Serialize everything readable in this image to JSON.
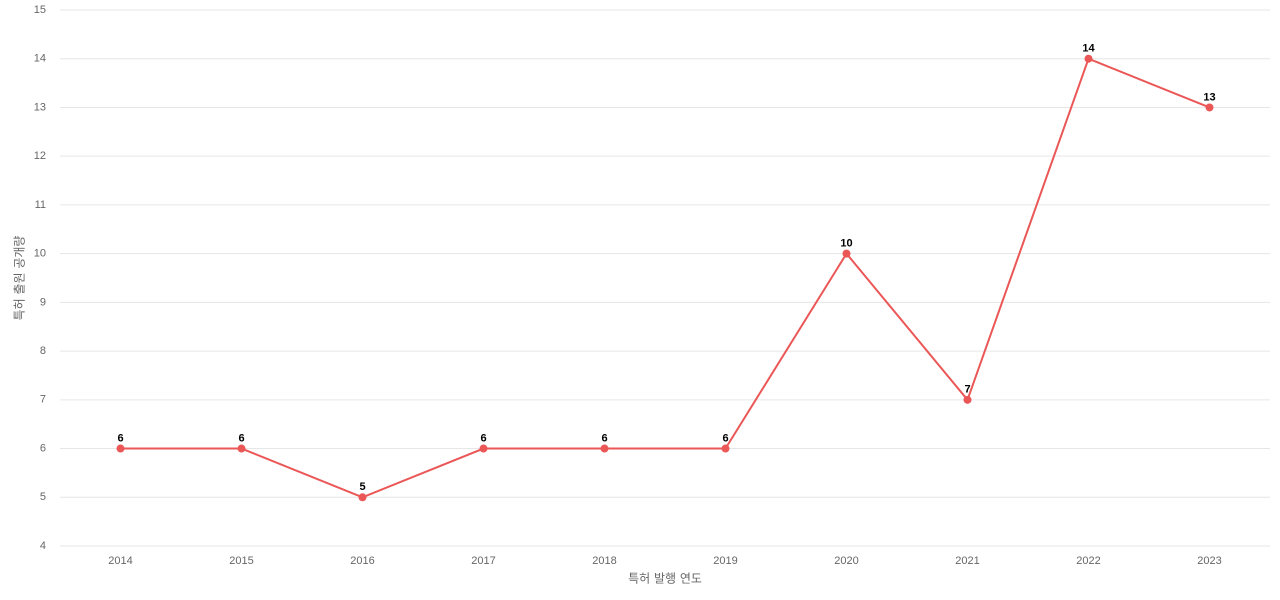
{
  "chart_data": {
    "type": "line",
    "x_label": "특허 발행 연도",
    "y_label": "특허 출원 공개량",
    "categories": [
      "2014",
      "2015",
      "2016",
      "2017",
      "2018",
      "2019",
      "2020",
      "2021",
      "2022",
      "2023"
    ],
    "values": [
      6,
      6,
      5,
      6,
      6,
      6,
      10,
      7,
      14,
      13
    ],
    "color": "#eb5757",
    "ylim": [
      4,
      15
    ],
    "yticks": [
      4,
      5,
      6,
      7,
      8,
      9,
      10,
      11,
      12,
      13,
      14,
      15
    ],
    "grid": true
  }
}
